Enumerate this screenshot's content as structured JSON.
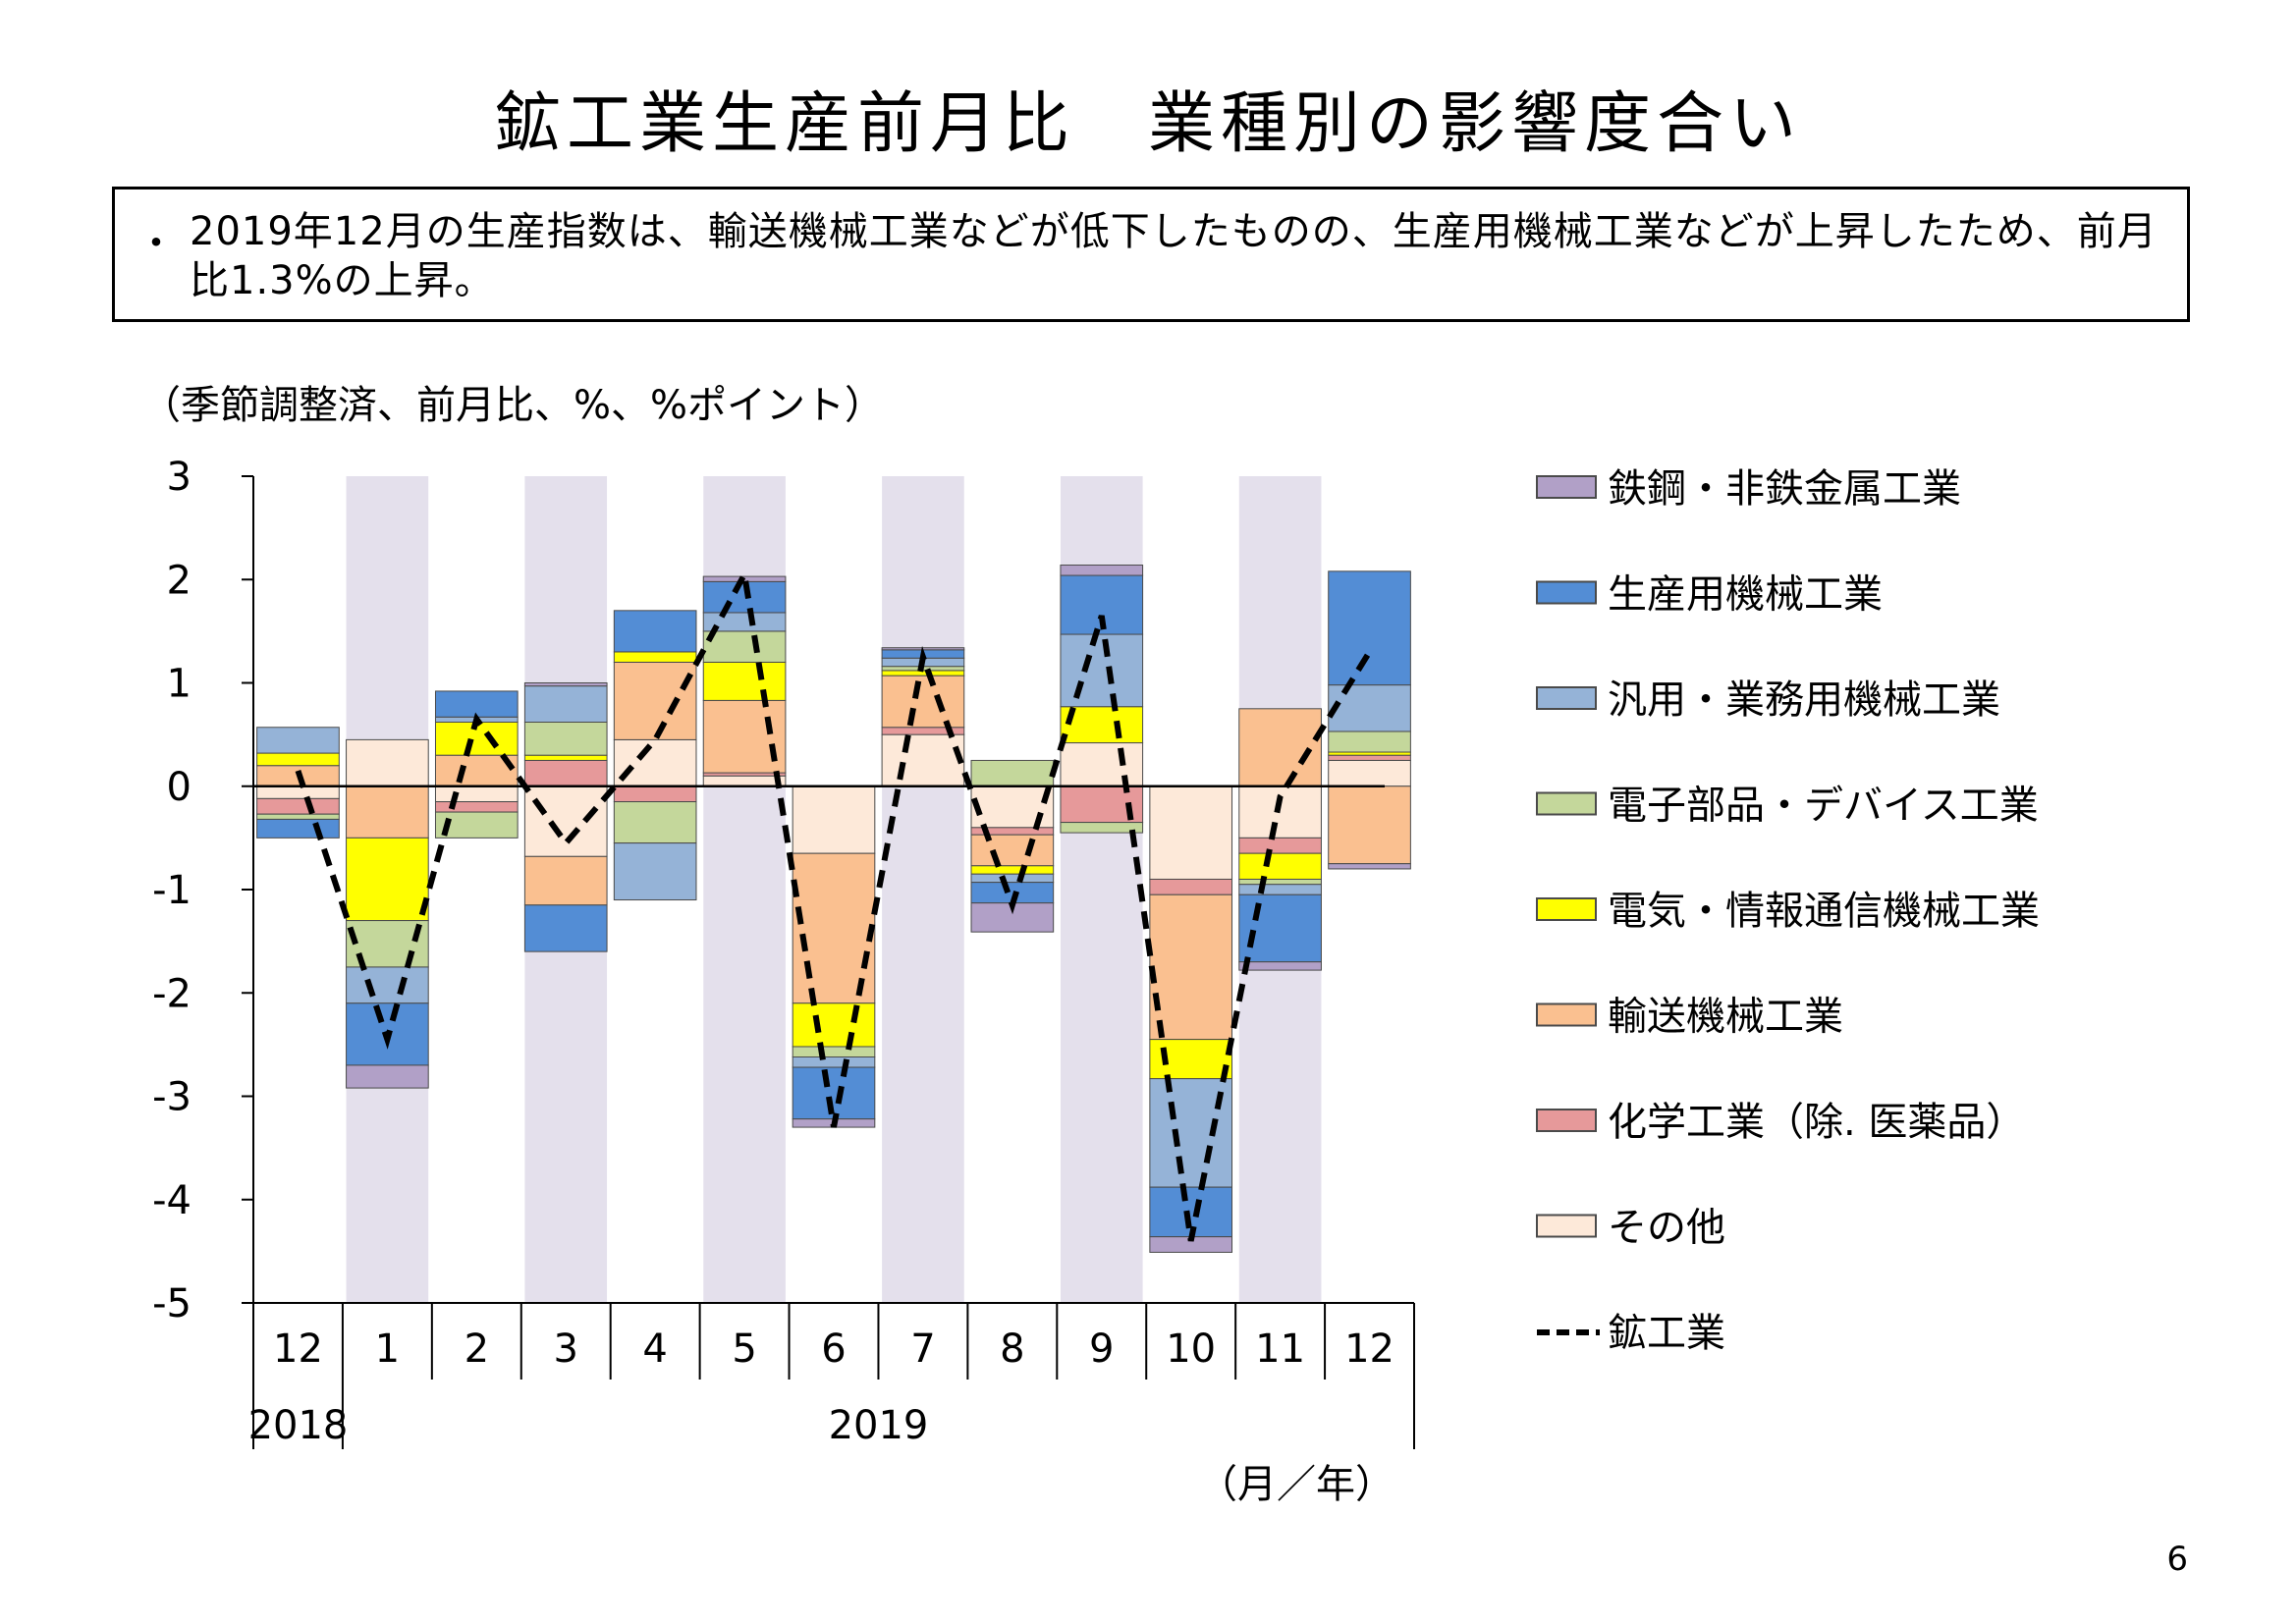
{
  "page": {
    "title": "鉱工業生産前月比　業種別の影響度合い",
    "summary_bullet": "・",
    "summary": "2019年12月の生産指数は、輸送機械工業などが低下したものの、生産用機械工業などが上昇したため、前月比1.3%の上昇。",
    "unit_note": "（季節調整済、前月比、%、%ポイント）",
    "x_unit_note": "（月／年）",
    "page_number": "6"
  },
  "chart_data": {
    "type": "bar",
    "stacked": true,
    "title": "",
    "xlabel": "（月／年）",
    "ylabel": "（季節調整済、前月比、%、%ポイント）",
    "ylim": [
      -5,
      3
    ],
    "y_ticks": [
      "3",
      "2",
      "1",
      "0",
      "-1",
      "-2",
      "-3",
      "-4",
      "-5"
    ],
    "categories": [
      "12",
      "1",
      "2",
      "3",
      "4",
      "5",
      "6",
      "7",
      "8",
      "9",
      "10",
      "11",
      "12"
    ],
    "year_labels": [
      {
        "label": "2018",
        "start_index": 0,
        "end_index": 0
      },
      {
        "label": "2019",
        "start_index": 1,
        "end_index": 12
      }
    ],
    "shaded_categories": [
      1,
      3,
      5,
      7,
      9,
      11
    ],
    "shade_color": "#e4e0ec",
    "legend_position": "right",
    "grid": false,
    "series": [
      {
        "name": "その他",
        "color": "#fde9d9",
        "values": [
          -0.12,
          0.45,
          -0.15,
          -0.68,
          0.45,
          0.1,
          -0.65,
          0.5,
          -0.4,
          0.42,
          -0.9,
          -0.5,
          0.25
        ]
      },
      {
        "name": "化学工業（除. 医薬品）",
        "color": "#e6999a",
        "values": [
          -0.15,
          0.0,
          -0.1,
          0.25,
          -0.15,
          0.03,
          0.0,
          0.07,
          -0.07,
          -0.35,
          -0.15,
          -0.15,
          0.05
        ]
      },
      {
        "name": "輸送機械工業",
        "color": "#fac090",
        "values": [
          0.2,
          -0.5,
          0.3,
          -0.47,
          0.75,
          0.7,
          -1.45,
          0.5,
          -0.3,
          0.0,
          -1.4,
          0.75,
          -0.75
        ]
      },
      {
        "name": "電気・情報通信機械工業",
        "color": "#ffff00",
        "values": [
          0.12,
          -0.8,
          0.32,
          0.05,
          0.1,
          0.37,
          -0.42,
          0.05,
          -0.08,
          0.35,
          -0.38,
          -0.25,
          0.03
        ]
      },
      {
        "name": "電子部品・デバイス工業",
        "color": "#c4d79b",
        "values": [
          -0.05,
          -0.45,
          -0.25,
          0.32,
          -0.4,
          0.3,
          -0.1,
          0.04,
          0.25,
          -0.1,
          0.0,
          -0.05,
          0.2
        ]
      },
      {
        "name": "汎用・業務用機械工業",
        "color": "#95b3d7",
        "values": [
          0.25,
          -0.35,
          0.05,
          0.35,
          -0.55,
          0.18,
          -0.1,
          0.08,
          -0.08,
          0.7,
          -1.05,
          -0.1,
          0.45
        ]
      },
      {
        "name": "生産用機械工業",
        "color": "#538dd5",
        "values": [
          -0.18,
          -0.6,
          0.25,
          -0.45,
          0.4,
          0.3,
          -0.5,
          0.08,
          -0.2,
          0.57,
          -0.48,
          -0.65,
          1.1
        ]
      },
      {
        "name": "鉄鋼・非鉄金属工業",
        "color": "#b1a0c7",
        "values": [
          0.0,
          -0.22,
          0.0,
          0.03,
          0.0,
          0.05,
          -0.08,
          0.02,
          -0.28,
          0.1,
          -0.15,
          -0.08,
          -0.05
        ]
      }
    ],
    "total_series": {
      "name": "鉱工業",
      "style": "dashed",
      "values": [
        0.15,
        -2.45,
        0.65,
        -0.55,
        0.45,
        2.05,
        -3.3,
        1.25,
        -1.15,
        1.65,
        -4.4,
        -0.1,
        1.3
      ]
    }
  }
}
